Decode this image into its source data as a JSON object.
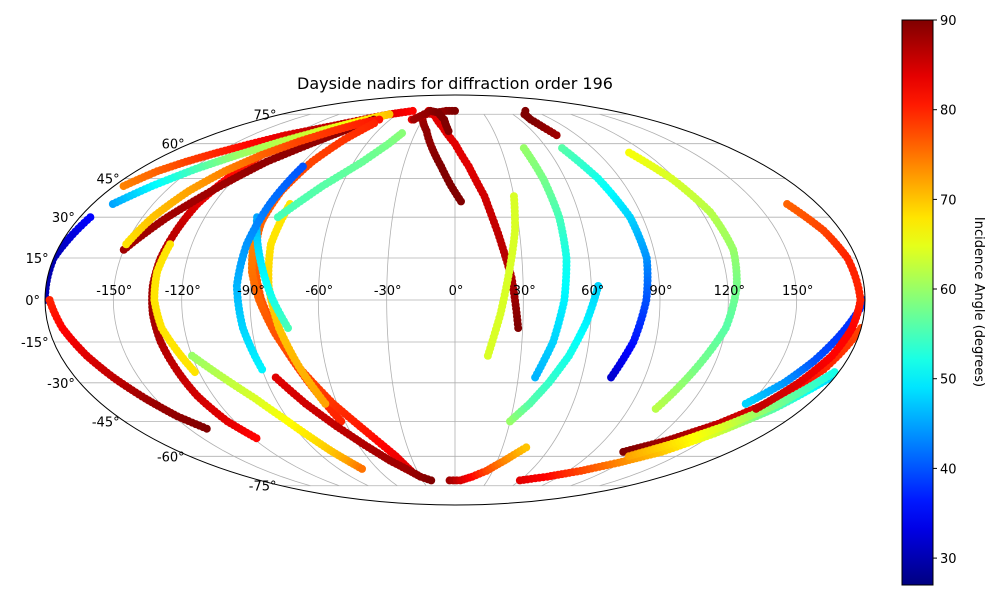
{
  "chart_data": {
    "type": "scatter",
    "title": "Dayside nadirs for diffraction order 196",
    "projection": "mollweide",
    "grid": true,
    "xlabel": "",
    "ylabel": "",
    "lon_tick_labels": [
      "-150°",
      "-120°",
      "-90°",
      "-60°",
      "-30°",
      "0°",
      "30°",
      "60°",
      "90°",
      "120°",
      "150°"
    ],
    "lon_ticks": [
      -150,
      -120,
      -90,
      -60,
      -30,
      0,
      30,
      60,
      90,
      120,
      150
    ],
    "lat_tick_labels": [
      "-75°",
      "-60°",
      "-45°",
      "-30°",
      "-15°",
      "0°",
      "15°",
      "30°",
      "45°",
      "60°",
      "75°"
    ],
    "lat_ticks": [
      -75,
      -60,
      -45,
      -30,
      -15,
      0,
      15,
      30,
      45,
      60,
      75
    ],
    "xlim": [
      -180,
      180
    ],
    "ylim": [
      -90,
      90
    ],
    "colorbar": {
      "label": "Incidence Angle (degrees)",
      "colormap": "jet",
      "range": [
        27,
        90
      ],
      "tick_labels": [
        "30",
        "40",
        "50",
        "60",
        "70",
        "80",
        "90"
      ],
      "ticks": [
        30,
        40,
        50,
        60,
        70,
        80,
        90
      ]
    },
    "tracks": [
      {
        "lon": [
          -120,
          -124,
          -128,
          -130,
          -132,
          -133,
          -133,
          -132,
          -130,
          -128,
          -124,
          -118
        ],
        "lat": [
          55,
          45,
          35,
          25,
          15,
          5,
          -5,
          -15,
          -25,
          -35,
          -45,
          -52
        ],
        "c": [
          80,
          82,
          84,
          86,
          87,
          88,
          88,
          87,
          86,
          85,
          84,
          82
        ]
      },
      {
        "lon": [
          -175,
          -180,
          -180
        ],
        "lat": [
          30,
          15,
          0
        ],
        "c": [
          35,
          30,
          30
        ]
      },
      {
        "lon": [
          -178,
          -174,
          -168,
          -162,
          -155,
          -148,
          -140
        ],
        "lat": [
          0,
          -10,
          -20,
          -28,
          -36,
          -43,
          -48
        ],
        "c": [
          80,
          82,
          84,
          86,
          88,
          89,
          90
        ]
      },
      {
        "lon": [
          -175,
          -168,
          -160,
          -150,
          -138,
          -125,
          -110,
          -95,
          -80,
          -68,
          -58,
          -48
        ],
        "lat": [
          42,
          48,
          52,
          56,
          60,
          64,
          67,
          70,
          73,
          75,
          76,
          77
        ],
        "c": [
          74,
          76,
          78,
          80,
          82,
          84,
          86,
          86,
          85,
          84,
          83,
          82
        ]
      },
      {
        "lon": [
          -170,
          -160,
          -148,
          -135,
          -120,
          -105,
          -90,
          -78,
          -68
        ],
        "lat": [
          35,
          42,
          49,
          55,
          61,
          66,
          70,
          73,
          75
        ],
        "c": [
          45,
          50,
          55,
          60,
          62,
          64,
          66,
          68,
          70
        ]
      },
      {
        "lon": [
          -150,
          -138,
          -124,
          -112,
          -98,
          -85,
          -75
        ],
        "lat": [
          18,
          30,
          42,
          52,
          60,
          67,
          72
        ],
        "c": [
          88,
          88,
          88,
          89,
          89,
          89,
          90
        ]
      },
      {
        "lon": [
          -130,
          -132,
          -132,
          -130,
          -126,
          -122
        ],
        "lat": [
          20,
          10,
          0,
          -10,
          -18,
          -26
        ],
        "c": [
          68,
          68,
          68,
          68,
          68,
          68
        ]
      },
      {
        "lon": [
          -150,
          -145,
          -138,
          -130,
          -120,
          -108,
          -95,
          -82,
          -70
        ],
        "lat": [
          20,
          30,
          40,
          48,
          55,
          61,
          66,
          70,
          72
        ],
        "c": [
          68,
          70,
          72,
          74,
          76,
          78,
          79,
          80,
          81
        ]
      },
      {
        "lon": [
          -70,
          -78,
          -85,
          -90,
          -92,
          -90,
          -85,
          -78,
          -70,
          -62
        ],
        "lat": [
          70,
          62,
          52,
          40,
          28,
          15,
          0,
          -15,
          -30,
          -45
        ],
        "c": [
          80,
          79,
          78,
          77,
          76,
          76,
          77,
          78,
          79,
          80
        ]
      },
      {
        "lon": [
          -92,
          -90,
          -86,
          -80,
          -72,
          -62,
          -50,
          -40,
          -35
        ],
        "lat": [
          20,
          10,
          0,
          -12,
          -25,
          -38,
          -50,
          -60,
          -67
        ],
        "c": [
          74,
          75,
          76,
          77,
          78,
          79,
          81,
          83,
          84
        ]
      },
      {
        "lon": [
          -82,
          -84,
          -82,
          -78,
          -72,
          -66
        ],
        "lat": [
          35,
          20,
          5,
          -10,
          -25,
          -38
        ],
        "c": [
          68,
          68,
          69,
          70,
          71,
          72
        ]
      },
      {
        "lon": [
          -120,
          -110,
          -100,
          -92,
          -85,
          -80,
          -76,
          -72
        ],
        "lat": [
          -20,
          -28,
          -36,
          -44,
          -52,
          -58,
          -62,
          -66
        ],
        "c": [
          60,
          62,
          64,
          66,
          68,
          70,
          72,
          75
        ]
      },
      {
        "lon": [
          -95,
          -90,
          -85,
          -80,
          -74
        ],
        "lat": [
          30,
          20,
          10,
          0,
          -10
        ],
        "c": [
          45,
          48,
          50,
          52,
          55
        ]
      },
      {
        "lon": [
          -88,
          -92,
          -95,
          -96,
          -94,
          -90
        ],
        "lat": [
          50,
          35,
          20,
          5,
          -10,
          -25
        ],
        "c": [
          40,
          42,
          44,
          46,
          48,
          50
        ]
      },
      {
        "lon": [
          -85,
          -70,
          -55,
          -45,
          -40
        ],
        "lat": [
          30,
          42,
          52,
          60,
          65
        ],
        "c": [
          55,
          56,
          57,
          58,
          59
        ]
      },
      {
        "lon": [
          -85,
          -76,
          -66,
          -56,
          -46,
          -38,
          -30,
          -22
        ],
        "lat": [
          -28,
          -38,
          -47,
          -55,
          -62,
          -66,
          -70,
          -72
        ],
        "c": [
          84,
          85,
          86,
          87,
          88,
          88,
          89,
          90
        ]
      },
      {
        "lon": [
          -30,
          -22,
          -15,
          -8,
          -2,
          3
        ],
        "lat": [
          72,
          66,
          58,
          50,
          42,
          36
        ],
        "c": [
          88,
          89,
          89,
          90,
          90,
          90
        ]
      },
      {
        "lon": [
          -40,
          -30,
          -20,
          -10,
          0
        ],
        "lat": [
          72,
          75,
          76,
          77,
          77
        ],
        "c": [
          84,
          86,
          88,
          89,
          90
        ]
      },
      {
        "lon": [
          -30,
          -20,
          -10,
          0,
          8,
          15,
          20,
          25,
          28
        ],
        "lat": [
          77,
          74,
          68,
          60,
          50,
          38,
          24,
          8,
          -10
        ],
        "c": [
          84,
          84,
          84,
          84,
          84,
          85,
          86,
          87,
          90
        ]
      },
      {
        "lon": [
          -38,
          -28,
          -18,
          -10,
          -5
        ],
        "lat": [
          72,
          77,
          76,
          72,
          66
        ],
        "c": [
          88,
          89,
          90,
          90,
          90
        ]
      },
      {
        "lon": [
          -5,
          5,
          15,
          25,
          35,
          45
        ],
        "lat": [
          -72,
          -72,
          -70,
          -67,
          -62,
          -56
        ],
        "c": [
          88,
          85,
          82,
          78,
          74,
          70
        ]
      },
      {
        "lon": [
          30,
          38,
          45,
          52,
          58,
          63
        ],
        "lat": [
          -45,
          -38,
          -30,
          -20,
          -8,
          5
        ],
        "c": [
          60,
          56,
          54,
          52,
          50,
          48
        ]
      },
      {
        "lon": [
          15,
          20,
          24,
          28,
          30
        ],
        "lat": [
          -20,
          -5,
          10,
          25,
          38
        ],
        "c": [
          64,
          64,
          64,
          64,
          64
        ]
      },
      {
        "lon": [
          45,
          48,
          50,
          50,
          48,
          44,
          38
        ],
        "lat": [
          58,
          45,
          30,
          15,
          0,
          -15,
          -28
        ],
        "c": [
          60,
          58,
          55,
          52,
          50,
          48,
          46
        ]
      },
      {
        "lon": [
          70,
          78,
          84,
          86,
          84,
          80,
          74
        ],
        "lat": [
          58,
          45,
          30,
          15,
          0,
          -15,
          -28
        ],
        "c": [
          56,
          52,
          48,
          44,
          40,
          36,
          32
        ]
      },
      {
        "lon": [
          75,
          72,
          70,
          72,
          80
        ],
        "lat": [
          64,
          68,
          72,
          75,
          77
        ],
        "c": [
          88,
          89,
          90,
          90,
          90
        ]
      },
      {
        "lon": [
          110,
          118,
          124,
          126,
          124,
          120,
          112,
          104
        ],
        "lat": [
          56,
          45,
          32,
          18,
          5,
          -10,
          -25,
          -40
        ],
        "c": [
          66,
          64,
          62,
          60,
          58,
          56,
          58,
          62
        ]
      },
      {
        "lon": [
          60,
          80,
          100,
          118,
          135,
          150,
          165,
          178
        ],
        "lat": [
          -72,
          -70,
          -67,
          -63,
          -58,
          -50,
          -40,
          -28
        ],
        "c": [
          84,
          82,
          78,
          74,
          70,
          64,
          56,
          48
        ]
      },
      {
        "lon": [
          110,
          128,
          145,
          160,
          172,
          180
        ],
        "lat": [
          -58,
          -53,
          -46,
          -37,
          -25,
          -10
        ],
        "c": [
          90,
          88,
          86,
          84,
          80,
          78
        ]
      },
      {
        "lon": [
          118,
          135,
          150,
          165,
          178
        ],
        "lat": [
          -60,
          -54,
          -47,
          -38,
          -26
        ],
        "c": [
          72,
          68,
          64,
          58,
          52
        ]
      },
      {
        "lon": [
          180,
          172,
          165,
          158,
          148
        ],
        "lat": [
          0,
          -12,
          -22,
          -30,
          -38
        ],
        "c": [
          38,
          38,
          40,
          44,
          48
        ]
      },
      {
        "lon": [
          165,
          172,
          176,
          178,
          176,
          172,
          165,
          156
        ],
        "lat": [
          35,
          25,
          15,
          0,
          -10,
          -20,
          -30,
          -40
        ],
        "c": [
          76,
          78,
          80,
          80,
          82,
          82,
          84,
          86
        ]
      }
    ]
  }
}
